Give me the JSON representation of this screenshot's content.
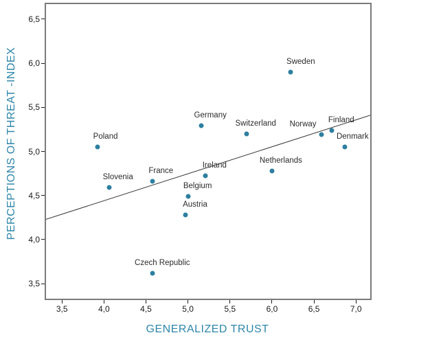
{
  "chart_data": {
    "type": "scatter",
    "title": "",
    "xlabel": "GENERALIZED TRUST",
    "ylabel": "PERCEPTIONS OF THREAT -INDEX",
    "xlim": [
      3.31,
      7.17
    ],
    "ylim": [
      3.33,
      6.67
    ],
    "grid": false,
    "legend_position": "none",
    "decimal_separator": ",",
    "x_ticks": [
      {
        "v": 3.5,
        "label": "3,5"
      },
      {
        "v": 4.0,
        "label": "4,0"
      },
      {
        "v": 4.5,
        "label": "4,5"
      },
      {
        "v": 5.0,
        "label": "5,0"
      },
      {
        "v": 5.5,
        "label": "5,5"
      },
      {
        "v": 6.0,
        "label": "6,0"
      },
      {
        "v": 6.5,
        "label": "6,5"
      },
      {
        "v": 7.0,
        "label": "7,0"
      }
    ],
    "y_ticks": [
      {
        "v": 3.5,
        "label": "3,5"
      },
      {
        "v": 4.0,
        "label": "4,0"
      },
      {
        "v": 4.5,
        "label": "4,5"
      },
      {
        "v": 5.0,
        "label": "5,0"
      },
      {
        "v": 5.5,
        "label": "5,5"
      },
      {
        "v": 6.0,
        "label": "6,0"
      },
      {
        "v": 6.5,
        "label": "6,5"
      }
    ],
    "points": [
      {
        "name": "Poland",
        "x": 3.92,
        "y": 5.05,
        "label_dx": 12
      },
      {
        "name": "Slovenia",
        "x": 4.06,
        "y": 4.59,
        "label_dx": 13
      },
      {
        "name": "France",
        "x": 4.58,
        "y": 4.66,
        "label_dx": 12
      },
      {
        "name": "Czech Republic",
        "x": 4.58,
        "y": 3.62,
        "label_dx": 14
      },
      {
        "name": "Austria",
        "x": 4.97,
        "y": 4.28,
        "label_dx": 14
      },
      {
        "name": "Belgium",
        "x": 5.0,
        "y": 4.49,
        "label_dx": 14
      },
      {
        "name": "Germany",
        "x": 5.16,
        "y": 5.29,
        "label_dx": 13
      },
      {
        "name": "Ireland",
        "x": 5.21,
        "y": 4.72,
        "label_dx": 13
      },
      {
        "name": "Switzerland",
        "x": 5.7,
        "y": 5.2,
        "label_dx": 13
      },
      {
        "name": "Netherlands",
        "x": 6.0,
        "y": 4.78,
        "label_dx": 13
      },
      {
        "name": "Sweden",
        "x": 6.22,
        "y": 5.9,
        "label_dx": 15
      },
      {
        "name": "Norway",
        "x": 6.59,
        "y": 5.19,
        "label_dx": -27
      },
      {
        "name": "Finland",
        "x": 6.71,
        "y": 5.24,
        "label_dx": 14
      },
      {
        "name": "Denmark",
        "x": 6.87,
        "y": 5.05,
        "label_dx": 11
      }
    ],
    "trend_line": {
      "x1": 3.31,
      "y1": 4.23,
      "x2": 7.17,
      "y2": 5.41
    },
    "colors": {
      "dot": "#2e7f9f",
      "axis_title": "#2e86a8",
      "point_label": "#2b2b2b",
      "frame": "#7a7a7a",
      "trend": "#333333",
      "tick_label": "#1a1a1a",
      "background": "#ffffff"
    }
  }
}
